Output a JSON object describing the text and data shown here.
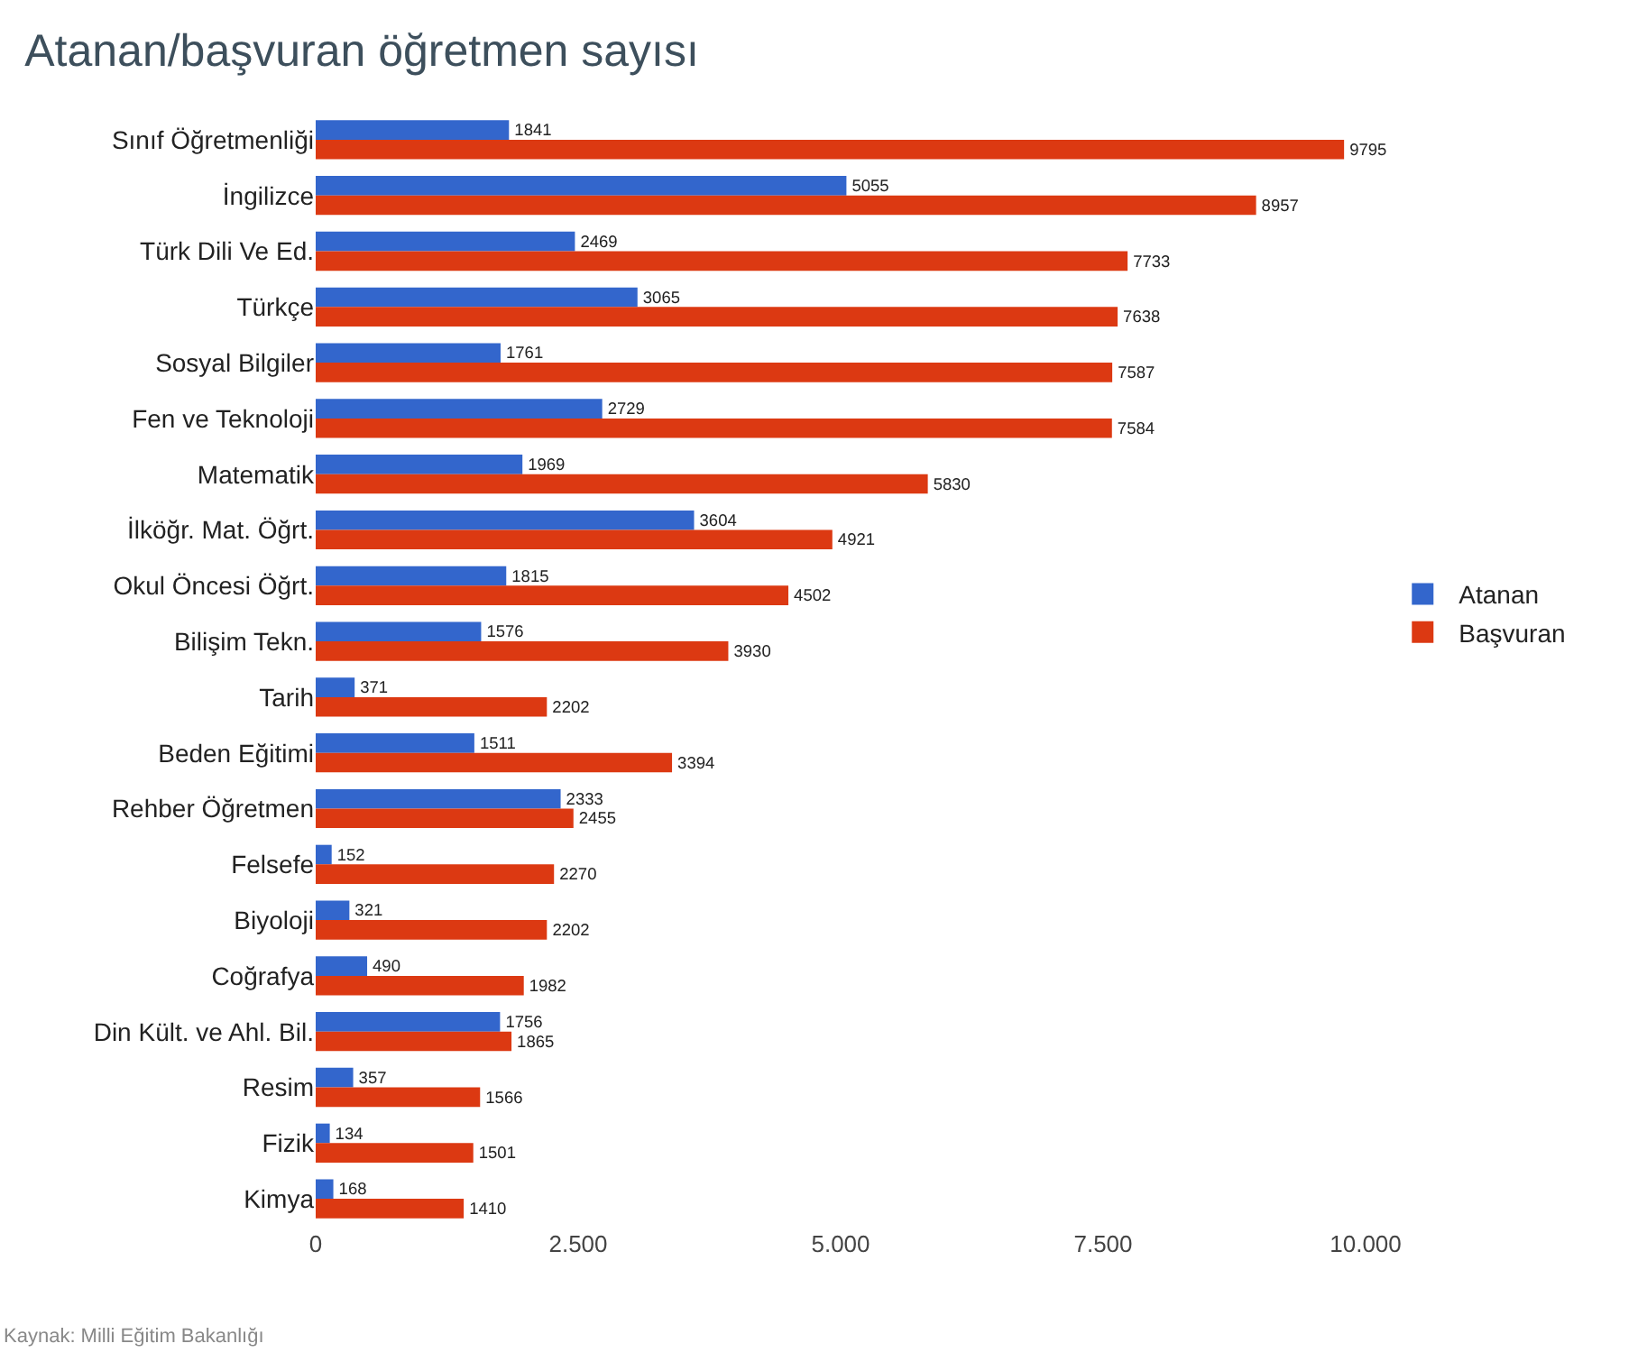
{
  "chart_data": {
    "type": "bar",
    "orientation": "horizontal",
    "title": "Atanan/başvuran öğretmen sayısı",
    "categories": [
      "Sınıf Öğretmenliği",
      "İngilizce",
      "Türk Dili Ve Ed.",
      "Türkçe",
      "Sosyal Bilgiler",
      "Fen ve Teknoloji",
      "Matematik",
      "İlköğr. Mat. Öğrt.",
      "Okul Öncesi Öğrt.",
      "Bilişim Tekn.",
      "Tarih",
      "Beden Eğitimi",
      "Rehber Öğretmen",
      "Felsefe",
      "Biyoloji",
      "Coğrafya",
      "Din Kült. ve Ahl. Bil.",
      "Resim",
      "Fizik",
      "Kimya"
    ],
    "series": [
      {
        "name": "Atanan",
        "color": "#3366cc",
        "values": [
          1841,
          5055,
          2469,
          3065,
          1761,
          2729,
          1969,
          3604,
          1815,
          1576,
          371,
          1511,
          2333,
          152,
          321,
          490,
          1756,
          357,
          134,
          168
        ]
      },
      {
        "name": "Başvuran",
        "color": "#dc3912",
        "values": [
          9795,
          8957,
          7733,
          7638,
          7587,
          7584,
          5830,
          4921,
          4502,
          3930,
          2202,
          3394,
          2455,
          2270,
          2202,
          1982,
          1865,
          1566,
          1501,
          1410
        ]
      }
    ],
    "xlim": [
      0,
      10000
    ],
    "xticks": [
      {
        "value": 0,
        "label": "0"
      },
      {
        "value": 2500,
        "label": "2.500"
      },
      {
        "value": 5000,
        "label": "5.000"
      },
      {
        "value": 7500,
        "label": "7.500"
      },
      {
        "value": 10000,
        "label": "10.000"
      }
    ],
    "data_labels": true,
    "grid": false,
    "legend": "right",
    "annotations": [
      "Kaynak: Milli Eğitim Bakanlığı"
    ]
  }
}
